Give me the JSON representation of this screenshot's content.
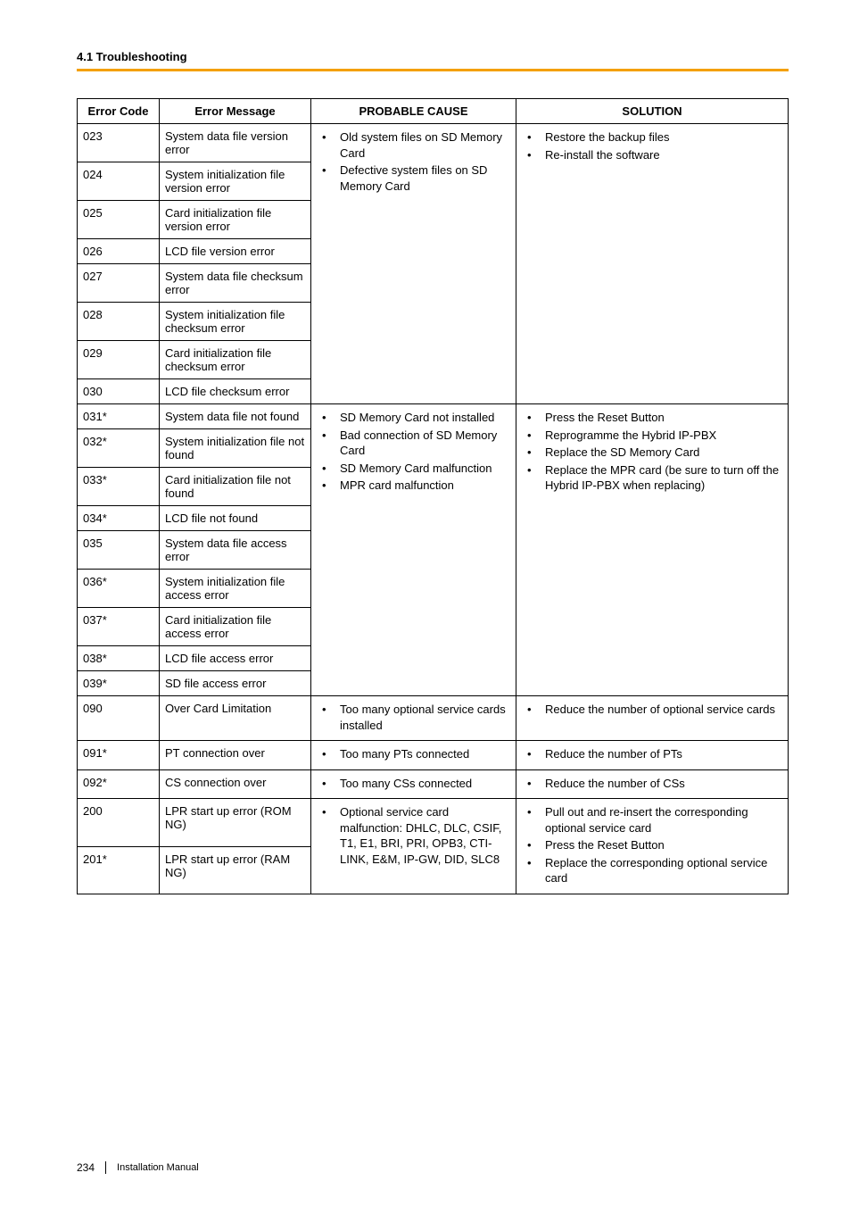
{
  "section_title": "4.1 Troubleshooting",
  "footer": {
    "page_number": "234",
    "doc_title": "Installation Manual"
  },
  "headers": {
    "code": "Error Code",
    "message": "Error Message",
    "cause": "PROBABLE CAUSE",
    "solution": "SOLUTION"
  },
  "group1": {
    "rows": [
      {
        "code": "023",
        "msg": "System data file version error"
      },
      {
        "code": "024",
        "msg": "System initialization file version error"
      },
      {
        "code": "025",
        "msg": "Card initialization file version error"
      },
      {
        "code": "026",
        "msg": "LCD file version error"
      },
      {
        "code": "027",
        "msg": "System data file checksum error"
      },
      {
        "code": "028",
        "msg": "System initialization file checksum error"
      },
      {
        "code": "029",
        "msg": "Card initialization file checksum error"
      },
      {
        "code": "030",
        "msg": "LCD file checksum error"
      }
    ],
    "causes": [
      "Old system files on SD Memory Card",
      "Defective system files on SD Memory Card"
    ],
    "solutions": [
      "Restore the backup files",
      "Re-install the software"
    ]
  },
  "group2": {
    "rows": [
      {
        "code": "031*",
        "msg": "System data file not found"
      },
      {
        "code": "032*",
        "msg": "System initialization file not found"
      },
      {
        "code": "033*",
        "msg": "Card initialization file not found"
      },
      {
        "code": "034*",
        "msg": "LCD file not found"
      },
      {
        "code": "035",
        "msg": "System data file access error"
      },
      {
        "code": "036*",
        "msg": "System initialization file access error"
      },
      {
        "code": "037*",
        "msg": "Card initialization file access error"
      },
      {
        "code": "038*",
        "msg": "LCD file access error"
      },
      {
        "code": "039*",
        "msg": "SD file access error"
      }
    ],
    "causes": [
      "SD Memory Card not installed",
      "Bad connection of SD Memory Card",
      "SD Memory Card malfunction",
      "MPR card malfunction"
    ],
    "solutions": [
      "Press the Reset Button",
      "Reprogramme the Hybrid IP-PBX",
      "Replace the SD Memory Card",
      "Replace the MPR card (be sure to turn off the Hybrid IP-PBX when replacing)"
    ]
  },
  "row090": {
    "code": "090",
    "msg": "Over Card Limitation",
    "causes": [
      "Too many optional service cards installed"
    ],
    "solutions": [
      "Reduce the number of optional service cards"
    ]
  },
  "row091": {
    "code": "091*",
    "msg": "PT connection over",
    "causes": [
      "Too many PTs connected"
    ],
    "solutions": [
      "Reduce the number of PTs"
    ]
  },
  "row092": {
    "code": "092*",
    "msg": "CS connection over",
    "causes": [
      "Too many CSs connected"
    ],
    "solutions": [
      "Reduce the number of CSs"
    ]
  },
  "group3": {
    "rows": [
      {
        "code": "200",
        "msg": "LPR start up error (ROM NG)"
      },
      {
        "code": "201*",
        "msg": "LPR start up error (RAM NG)"
      }
    ],
    "causes": [
      "Optional service card malfunction: DHLC, DLC, CSIF, T1, E1, BRI, PRI, OPB3, CTI-LINK, E&M, IP-GW, DID, SLC8"
    ],
    "solutions": [
      "Pull out and re-insert the corresponding optional service card",
      "Press the Reset Button",
      "Replace the corresponding optional service card"
    ]
  }
}
